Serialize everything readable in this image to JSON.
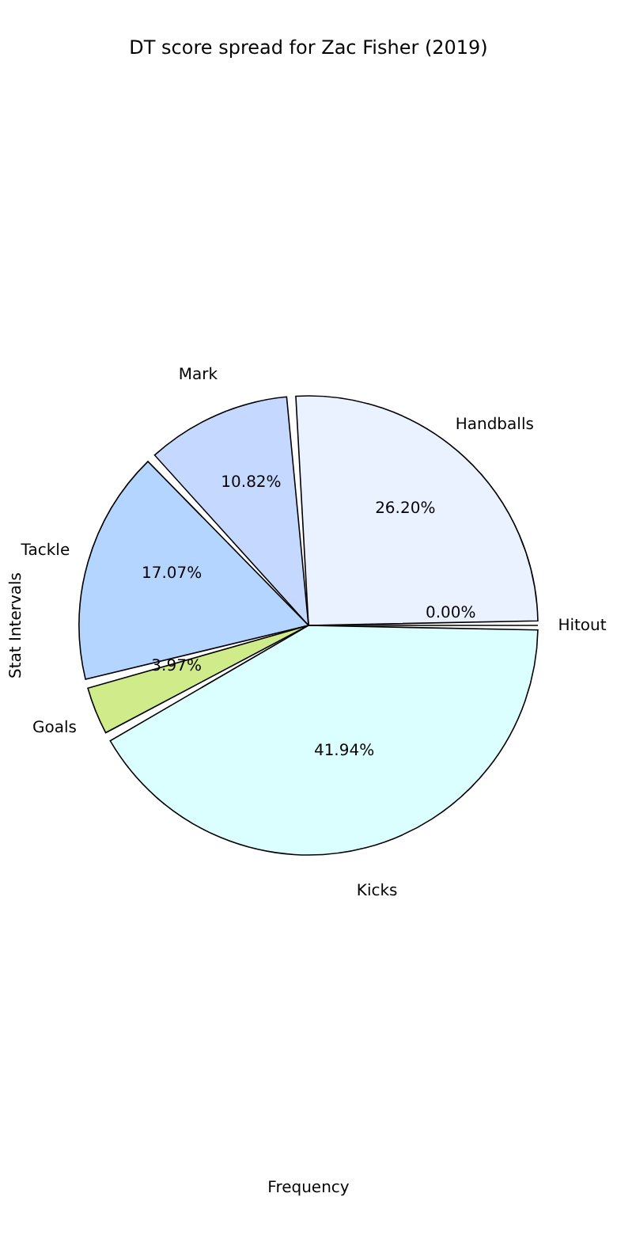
{
  "chart_data": {
    "type": "pie",
    "title": "DT score spread for Zac Fisher (2019)",
    "xlabel": "Frequency",
    "ylabel": "Stat Intervals",
    "categories": [
      "Handballs",
      "Mark",
      "Tackle",
      "Goals",
      "Kicks",
      "Hitout"
    ],
    "values": [
      26.2,
      10.82,
      17.07,
      3.97,
      41.94,
      0.0
    ],
    "value_labels": [
      "26.20%",
      "10.82%",
      "17.07%",
      "3.97%",
      "41.94%",
      "0.00%"
    ],
    "colors": [
      "#eaf1ff",
      "#c5d8ff",
      "#b3d5ff",
      "#d0eb8a",
      "#dbffff",
      "#8c8c8c"
    ]
  }
}
